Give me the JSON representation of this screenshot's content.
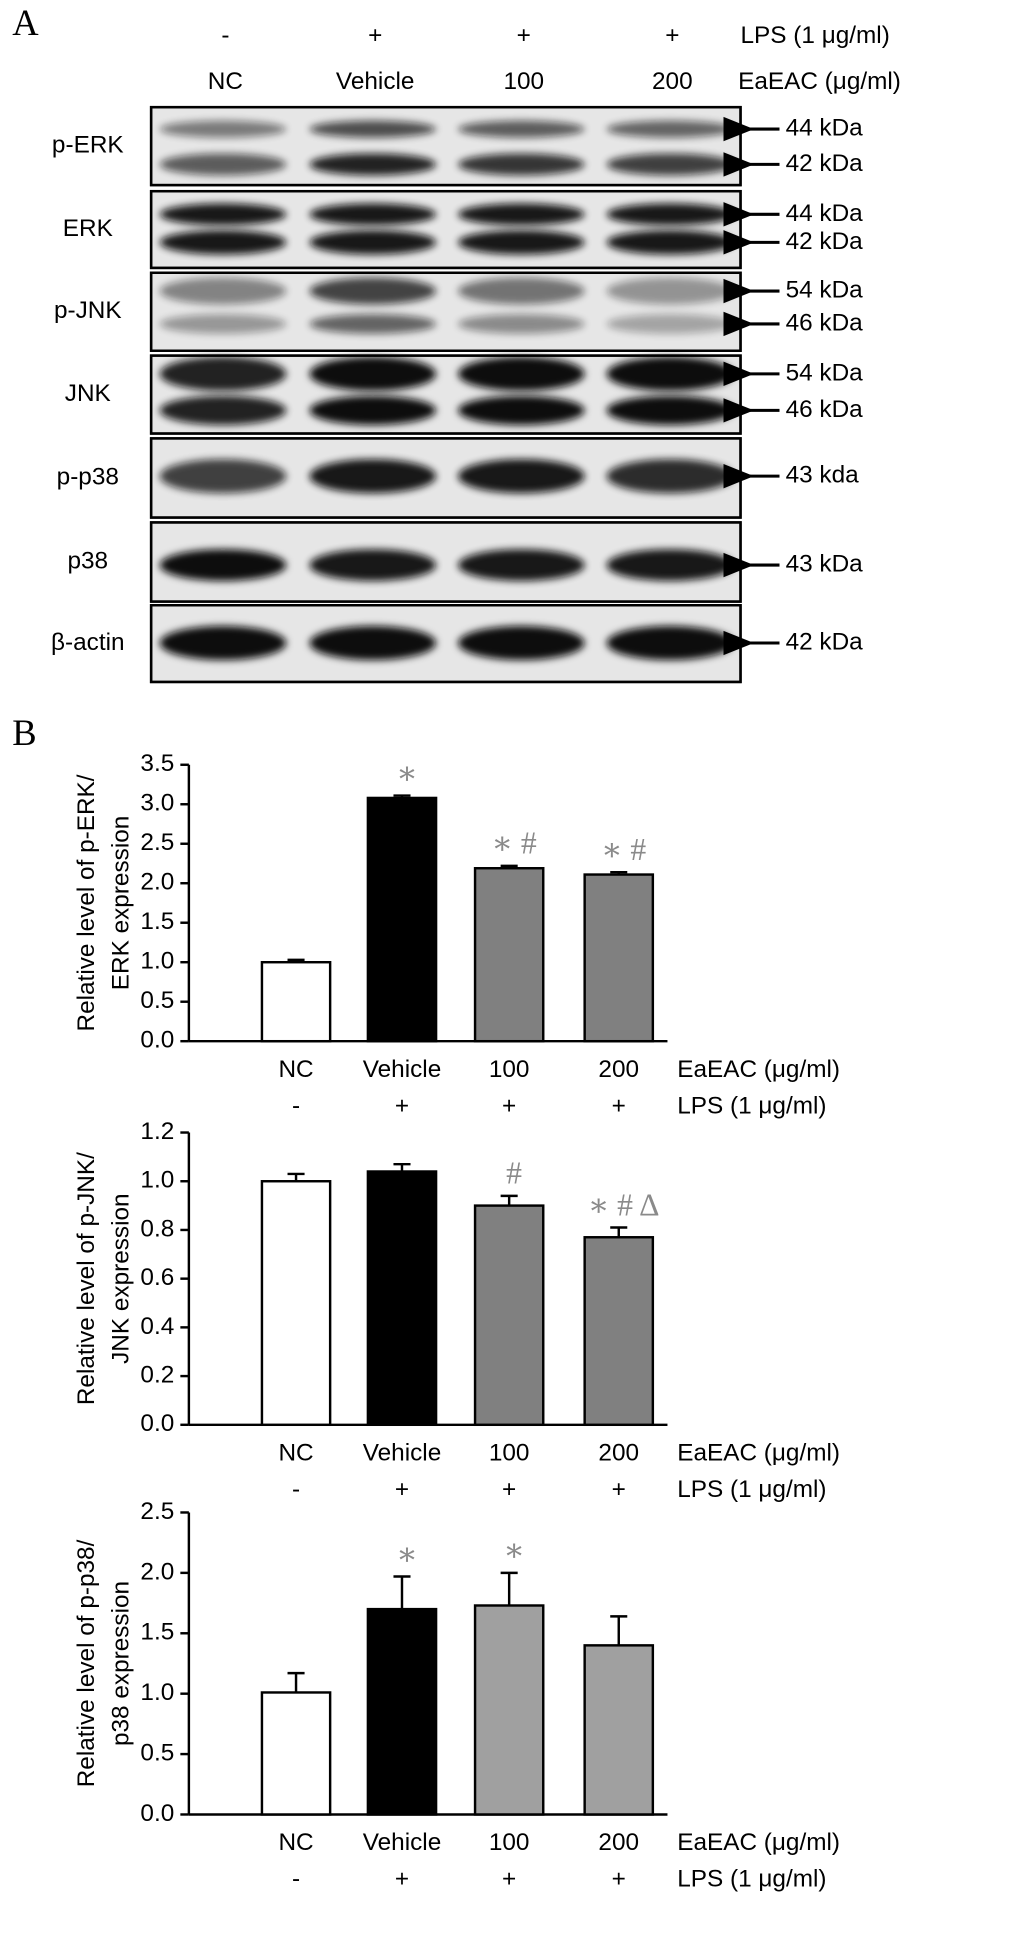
{
  "panel_labels": [
    "A",
    "B"
  ],
  "blot": {
    "lps_label": "LPS (1 μg/ml)",
    "lps": [
      "-",
      "+",
      "+",
      "+"
    ],
    "treatment_label": "EaEAC (μg/ml)",
    "groups": [
      "NC",
      "Vehicle",
      "100",
      "200"
    ],
    "rows": [
      {
        "label": "p-ERK",
        "markers": [
          "44 kDa",
          "42 kDa"
        ]
      },
      {
        "label": "ERK",
        "markers": [
          "44 kDa",
          "42 kDa"
        ]
      },
      {
        "label": "p-JNK",
        "markers": [
          "54 kDa",
          "46 kDa"
        ]
      },
      {
        "label": "JNK",
        "markers": [
          "54 kDa",
          "46 kDa"
        ]
      },
      {
        "label": "p-p38",
        "markers": [
          "43 kda"
        ]
      },
      {
        "label": "p38",
        "markers": [
          "43 kDa"
        ]
      },
      {
        "label": "β-actin",
        "markers": [
          "42 kDa"
        ]
      }
    ]
  },
  "chart_data": [
    {
      "type": "bar",
      "ylabel": [
        "Relative level of p-ERK/",
        "ERK expression"
      ],
      "categories": [
        "NC",
        "Vehicle",
        "100",
        "200"
      ],
      "lps": [
        "-",
        "+",
        "+",
        "+"
      ],
      "xlabel": "EaEAC (μg/ml)",
      "lps_label": "LPS (1 μg/ml)",
      "values": [
        1.0,
        3.08,
        2.19,
        2.11
      ],
      "errors": [
        0.03,
        0.03,
        0.03,
        0.03
      ],
      "colors": [
        "#ffffff",
        "#000000",
        "#808080",
        "#808080"
      ],
      "annotations": [
        null,
        "∗",
        "∗ #",
        "∗ #"
      ],
      "ylim": [
        0,
        3.5
      ],
      "yticks": [
        {
          "value": 0,
          "label": "0.0"
        },
        0.5,
        {
          "value": 1,
          "label": "1.0"
        },
        1.5,
        {
          "value": 2,
          "label": "2.0"
        },
        2.5,
        {
          "value": 3,
          "label": "3.0"
        },
        3.5
      ]
    },
    {
      "type": "bar",
      "ylabel": [
        "Relative level of p-JNK/",
        "JNK expression"
      ],
      "categories": [
        "NC",
        "Vehicle",
        "100",
        "200"
      ],
      "lps": [
        "-",
        "+",
        "+",
        "+"
      ],
      "xlabel": "EaEAC (μg/ml)",
      "lps_label": "LPS (1 μg/ml)",
      "values": [
        1.0,
        1.04,
        0.9,
        0.77
      ],
      "errors": [
        0.03,
        0.03,
        0.04,
        0.04
      ],
      "colors": [
        "#ffffff",
        "#000000",
        "#808080",
        "#808080"
      ],
      "annotations": [
        null,
        null,
        "#",
        "∗ # Δ"
      ],
      "ylim": [
        0,
        1.2
      ],
      "yticks": [
        {
          "value": 0,
          "label": "0.0"
        },
        0.2,
        0.4,
        0.6,
        0.8,
        {
          "value": 1,
          "label": "1.0"
        },
        1.2
      ]
    },
    {
      "type": "bar",
      "ylabel": [
        "Relative level of p-p38/",
        "p38 expression"
      ],
      "categories": [
        "NC",
        "Vehicle",
        "100",
        "200"
      ],
      "lps": [
        "-",
        "+",
        "+",
        "+"
      ],
      "xlabel": "EaEAC (μg/ml)",
      "lps_label": "LPS (1 μg/ml)",
      "values": [
        1.01,
        1.7,
        1.73,
        1.4
      ],
      "errors": [
        0.16,
        0.27,
        0.27,
        0.24
      ],
      "colors": [
        "#ffffff",
        "#000000",
        "#a0a0a0",
        "#a0a0a0"
      ],
      "annotations": [
        null,
        "∗",
        "∗",
        null
      ],
      "ylim": [
        0,
        2.5
      ],
      "yticks": [
        {
          "value": 0,
          "label": "0.0"
        },
        0.5,
        {
          "value": 1,
          "label": "1.0"
        },
        1.5,
        {
          "value": 2,
          "label": "2.0"
        },
        2.5
      ]
    }
  ]
}
